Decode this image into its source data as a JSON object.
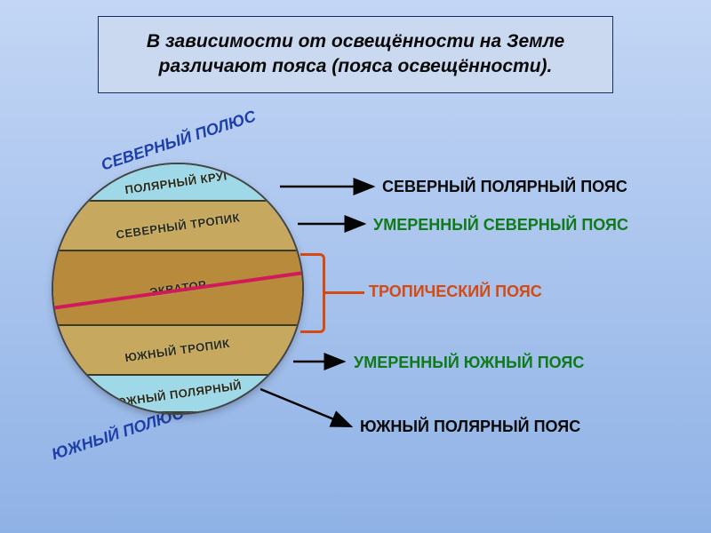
{
  "colors": {
    "bg_top": "#c3d6f5",
    "bg_bottom": "#8fb2e6",
    "title_bg": "#cad9f0",
    "title_border": "#1a2a5c",
    "title_text": "#0a0a0a",
    "polar_band": "#9fd9e8",
    "temperate_band": "#c6a85e",
    "tropical_band": "#b88a3c",
    "equator_line": "#d11a5b",
    "band_label": "#2a2a1a",
    "pole_label": "#1f3fa8",
    "polar_zone": "#0a0a0a",
    "temperate_zone": "#0f7a1a",
    "tropical_zone": "#d44a10",
    "arrow": "#050505",
    "bracket": "#d44a10"
  },
  "fontsize": {
    "title": 21,
    "band": 13,
    "pole": 18,
    "zone": 18
  },
  "title": "В зависимости от освещённости на Земле различают пояса (пояса освещённости).",
  "bands": {
    "arctic_circle": "ПОЛЯРНЫЙ КРУГ",
    "north_tropic": "СЕВЕРНЫЙ ТРОПИК",
    "equator": "ЭКВАТОР",
    "south_tropic": "ЮЖНЫЙ ТРОПИК",
    "antarctic_circle": "ЮЖНЫЙ ПОЛЯРНЫЙ"
  },
  "poles": {
    "north": "СЕВЕРНЫЙ ПОЛЮС",
    "south": "ЮЖНЫЙ ПОЛЮС"
  },
  "zones": {
    "north_polar": "СЕВЕРНЫЙ ПОЛЯРНЫЙ ПОЯС",
    "north_temperate": "УМЕРЕННЫЙ СЕВЕРНЫЙ ПОЯС",
    "tropical": "ТРОПИЧЕСКИЙ ПОЯС",
    "south_temperate": "УМЕРЕННЫЙ ЮЖНЫЙ ПОЯС",
    "south_polar": "ЮЖНЫЙ ПОЛЯРНЫЙ ПОЯС"
  },
  "globe_bands": [
    {
      "top_pct": 0,
      "h_pct": 15,
      "color_key": "polar_band"
    },
    {
      "top_pct": 15,
      "h_pct": 20,
      "color_key": "temperate_band"
    },
    {
      "top_pct": 35,
      "h_pct": 30,
      "color_key": "tropical_band"
    },
    {
      "top_pct": 65,
      "h_pct": 20,
      "color_key": "temperate_band"
    },
    {
      "top_pct": 85,
      "h_pct": 15,
      "color_key": "polar_band"
    }
  ]
}
